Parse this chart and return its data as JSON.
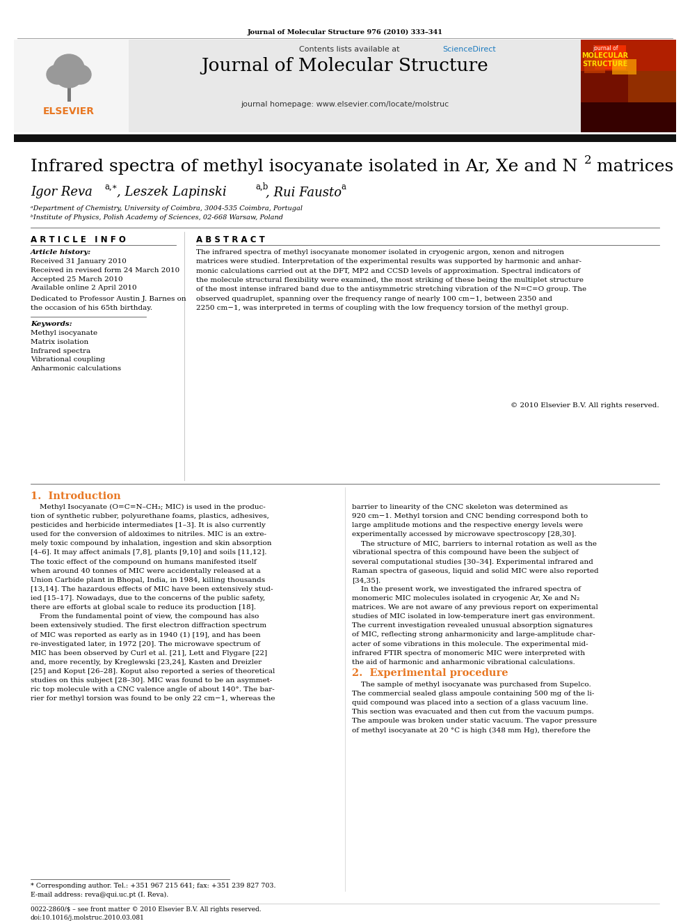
{
  "journal_info": "Journal of Molecular Structure 976 (2010) 333–341",
  "journal_name": "Journal of Molecular Structure",
  "journal_homepage": "journal homepage: www.elsevier.com/locate/molstruc",
  "contents_line": "Contents lists available at ScienceDirect",
  "sciencedirect_text": "ScienceDirect",
  "title_main": "Infrared spectra of methyl isocyanate isolated in Ar, Xe and N",
  "title_sub": "2",
  "title_end": " matrices",
  "affil_a": "ᵃDepartment of Chemistry, University of Coimbra, 3004-535 Coimbra, Portugal",
  "affil_b": "ᵇInstitute of Physics, Polish Academy of Sciences, 02-668 Warsaw, Poland",
  "section_article_info": "A R T I C L E   I N F O",
  "section_abstract": "A B S T R A C T",
  "article_history_label": "Article history:",
  "received1": "Received 31 January 2010",
  "received2": "Received in revised form 24 March 2010",
  "accepted": "Accepted 25 March 2010",
  "available": "Available online 2 April 2010",
  "dedication1": "Dedicated to Professor Austin J. Barnes on",
  "dedication2": "the occasion of his 65th birthday.",
  "keywords_label": "Keywords:",
  "keywords": [
    "Methyl isocyanate",
    "Matrix isolation",
    "Infrared spectra",
    "Vibrational coupling",
    "Anharmonic calculations"
  ],
  "abstract_lines": [
    "The infrared spectra of methyl isocyanate monomer isolated in cryogenic argon, xenon and nitrogen",
    "matrices were studied. Interpretation of the experimental results was supported by harmonic and anhar-",
    "monic calculations carried out at the DFT, MP2 and CCSD levels of approximation. Spectral indicators of",
    "the molecule structural flexibility were examined, the most striking of these being the multiplet structure",
    "of the most intense infrared band due to the antisymmetric stretching vibration of the N=C=O group. The",
    "observed quadruplet, spanning over the frequency range of nearly 100 cm−1, between 2350 and",
    "2250 cm−1, was interpreted in terms of coupling with the low frequency torsion of the methyl group."
  ],
  "copyright": "© 2010 Elsevier B.V. All rights reserved.",
  "intro_title": "1.  Introduction",
  "intro_col1_lines": [
    "    Methyl Isocyanate (O=C=N–CH₃; MIC) is used in the produc-",
    "tion of synthetic rubber, polyurethane foams, plastics, adhesives,",
    "pesticides and herbicide intermediates [1–3]. It is also currently",
    "used for the conversion of aldoximes to nitriles. MIC is an extre-",
    "mely toxic compound by inhalation, ingestion and skin absorption",
    "[4–6]. It may affect animals [7,8], plants [9,10] and soils [11,12].",
    "The toxic effect of the compound on humans manifested itself",
    "when around 40 tonnes of MIC were accidentally released at a",
    "Union Carbide plant in Bhopal, India, in 1984, killing thousands",
    "[13,14]. The hazardous effects of MIC have been extensively stud-",
    "ied [15–17]. Nowadays, due to the concerns of the public safety,",
    "there are efforts at global scale to reduce its production [18].",
    "    From the fundamental point of view, the compound has also",
    "been extensively studied. The first electron diffraction spectrum",
    "of MIC was reported as early as in 1940 (1) [19], and has been",
    "re-investigated later, in 1972 [20]. The microwave spectrum of",
    "MIC has been observed by Curl et al. [21], Lett and Flygare [22]",
    "and, more recently, by Kreglewski [23,24], Kasten and Dreizler",
    "[25] and Koput [26–28]. Koput also reported a series of theoretical",
    "studies on this subject [28–30]. MIC was found to be an asymmet-",
    "ric top molecule with a CNC valence angle of about 140°. The bar-",
    "rier for methyl torsion was found to be only 22 cm−1, whereas the"
  ],
  "intro_col2_lines": [
    "barrier to linearity of the CNC skeleton was determined as",
    "920 cm−1. Methyl torsion and CNC bending correspond both to",
    "large amplitude motions and the respective energy levels were",
    "experimentally accessed by microwave spectroscopy [28,30].",
    "    The structure of MIC, barriers to internal rotation as well as the",
    "vibrational spectra of this compound have been the subject of",
    "several computational studies [30–34]. Experimental infrared and",
    "Raman spectra of gaseous, liquid and solid MIC were also reported",
    "[34,35].",
    "    In the present work, we investigated the infrared spectra of",
    "monomeric MIC molecules isolated in cryogenic Ar, Xe and N₂",
    "matrices. We are not aware of any previous report on experimental",
    "studies of MIC isolated in low-temperature inert gas environment.",
    "The current investigation revealed unusual absorption signatures",
    "of MIC, reflecting strong anharmonicity and large-amplitude char-",
    "acter of some vibrations in this molecule. The experimental mid-",
    "infrared FTIR spectra of monomeric MIC were interpreted with",
    "the aid of harmonic and anharmonic vibrational calculations."
  ],
  "exp_title": "2.  Experimental procedure",
  "exp_lines": [
    "    The sample of methyl isocyanate was purchased from Supelco.",
    "The commercial sealed glass ampoule containing 500 mg of the li-",
    "quid compound was placed into a section of a glass vacuum line.",
    "This section was evacuated and then cut from the vacuum pumps.",
    "The ampoule was broken under static vacuum. The vapor pressure",
    "of methyl isocyanate at 20 °C is high (348 mm Hg), therefore the"
  ],
  "footnote_corresp": "* Corresponding author. Tel.: +351 967 215 641; fax: +351 239 827 703.",
  "footnote_email": "E-mail address: reva@qui.uc.pt (I. Reva).",
  "issn": "0022-2860/$ – see front matter © 2010 Elsevier B.V. All rights reserved.",
  "doi": "doi:10.1016/j.molstruc.2010.03.081",
  "bg_color": "#ffffff",
  "header_bg": "#e8e8e8",
  "elsevier_color": "#e87722",
  "sciencedirect_color": "#1a7abf",
  "black_bar_color": "#111111",
  "thin_line_color": "#555555",
  "text_color": "#000000"
}
